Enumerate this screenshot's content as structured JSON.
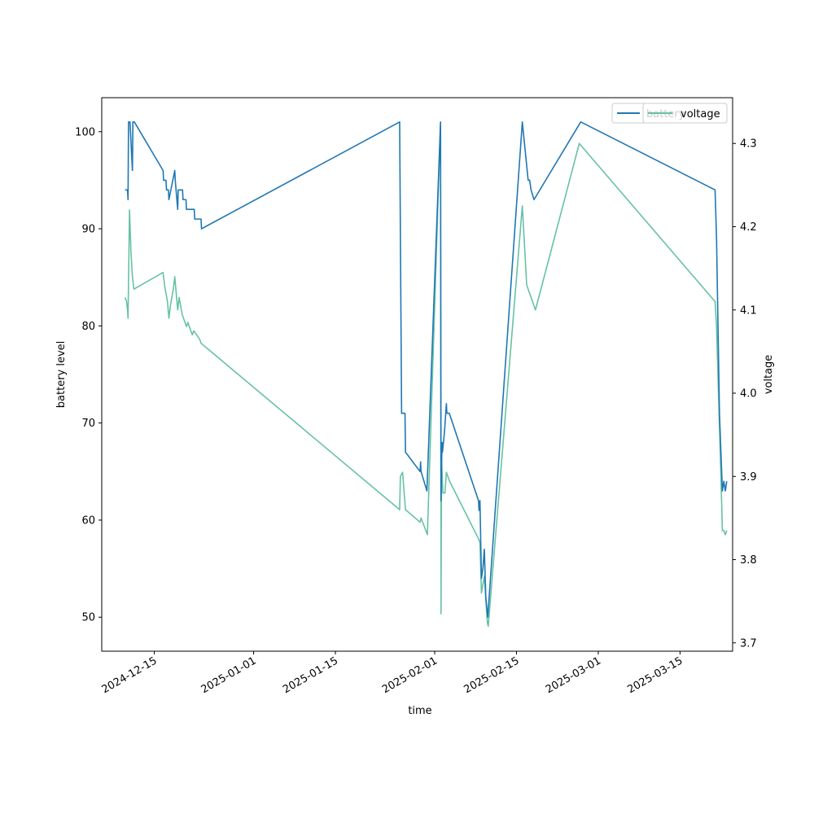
{
  "chart_data": {
    "type": "line",
    "xlabel": "time",
    "ylabel_left": "battery level",
    "ylabel_right": "voltage",
    "x_range": [
      "2024-12-06",
      "2025-03-24"
    ],
    "x_ticks": [
      "2024-12-15",
      "2025-01-01",
      "2025-01-15",
      "2025-02-01",
      "2025-02-15",
      "2025-03-01",
      "2025-03-15"
    ],
    "ylim_left": [
      46.5,
      103.5
    ],
    "yticks_left": [
      50,
      60,
      70,
      80,
      90,
      100
    ],
    "ylim_right": [
      3.69,
      4.355
    ],
    "yticks_right": [
      "3.7",
      "3.8",
      "3.9",
      "4.0",
      "4.1",
      "4.2",
      "4.3"
    ],
    "grid": false,
    "legend_placement": "top-right",
    "legend_entries": [
      "battery",
      "voltage"
    ],
    "colors": {
      "battery": "#1f77b4",
      "voltage": "#66c2a5"
    },
    "series": [
      {
        "name": "battery",
        "axis": "left",
        "points": [
          [
            "2024-12-10 00:00",
            94
          ],
          [
            "2024-12-10 10:00",
            94
          ],
          [
            "2024-12-10 12:00",
            93
          ],
          [
            "2024-12-10 14:00",
            101
          ],
          [
            "2024-12-10 20:00",
            101
          ],
          [
            "2024-12-11 02:00",
            98
          ],
          [
            "2024-12-11 06:00",
            96
          ],
          [
            "2024-12-11 08:00",
            101
          ],
          [
            "2024-12-11 14:00",
            101
          ],
          [
            "2024-12-16 12:00",
            96
          ],
          [
            "2024-12-16 14:00",
            95
          ],
          [
            "2024-12-17 00:00",
            95
          ],
          [
            "2024-12-17 02:00",
            94
          ],
          [
            "2024-12-17 10:00",
            94
          ],
          [
            "2024-12-17 12:00",
            93
          ],
          [
            "2024-12-18 12:00",
            96
          ],
          [
            "2024-12-18 14:00",
            95
          ],
          [
            "2024-12-19 00:00",
            92
          ],
          [
            "2024-12-19 02:00",
            94
          ],
          [
            "2024-12-19 20:00",
            94
          ],
          [
            "2024-12-19 22:00",
            93
          ],
          [
            "2024-12-20 10:00",
            93
          ],
          [
            "2024-12-20 12:00",
            92
          ],
          [
            "2024-12-21 20:00",
            92
          ],
          [
            "2024-12-21 22:00",
            91
          ],
          [
            "2024-12-23 00:00",
            91
          ],
          [
            "2024-12-23 02:00",
            90
          ],
          [
            "2025-01-26 00:00",
            101
          ],
          [
            "2025-01-26 08:00",
            71
          ],
          [
            "2025-01-26 22:00",
            71
          ],
          [
            "2025-01-27 00:00",
            67
          ],
          [
            "2025-01-29 12:00",
            65
          ],
          [
            "2025-01-29 14:00",
            66
          ],
          [
            "2025-01-29 16:00",
            65
          ],
          [
            "2025-01-30 16:00",
            63
          ],
          [
            "2025-02-02 00:00",
            101
          ],
          [
            "2025-02-02 02:00",
            62
          ],
          [
            "2025-02-02 06:00",
            68
          ],
          [
            "2025-02-02 08:00",
            67
          ],
          [
            "2025-02-02 16:00",
            69
          ],
          [
            "2025-02-03 00:00",
            72
          ],
          [
            "2025-02-03 02:00",
            71
          ],
          [
            "2025-02-03 12:00",
            71
          ],
          [
            "2025-02-08 12:00",
            62
          ],
          [
            "2025-02-08 14:00",
            61
          ],
          [
            "2025-02-08 18:00",
            62
          ],
          [
            "2025-02-09 00:00",
            54
          ],
          [
            "2025-02-09 06:00",
            55
          ],
          [
            "2025-02-09 12:00",
            57
          ],
          [
            "2025-02-09 18:00",
            52
          ],
          [
            "2025-02-10 02:00",
            50
          ],
          [
            "2025-02-16 00:00",
            101
          ],
          [
            "2025-02-16 12:00",
            98
          ],
          [
            "2025-02-17 00:00",
            95
          ],
          [
            "2025-02-17 06:00",
            95
          ],
          [
            "2025-02-17 12:00",
            94
          ],
          [
            "2025-02-18 00:00",
            93
          ],
          [
            "2025-02-26 00:00",
            101
          ],
          [
            "2025-03-21 00:00",
            94
          ],
          [
            "2025-03-21 06:00",
            89
          ],
          [
            "2025-03-21 18:00",
            71
          ],
          [
            "2025-03-22 06:00",
            63
          ],
          [
            "2025-03-22 12:00",
            64
          ],
          [
            "2025-03-22 18:00",
            63
          ],
          [
            "2025-03-23 00:00",
            64
          ]
        ]
      },
      {
        "name": "voltage",
        "axis": "right",
        "points": [
          [
            "2024-12-10 00:00",
            4.115
          ],
          [
            "2024-12-10 06:00",
            4.11
          ],
          [
            "2024-12-10 10:00",
            4.1
          ],
          [
            "2024-12-10 12:00",
            4.09
          ],
          [
            "2024-12-10 18:00",
            4.22
          ],
          [
            "2024-12-11 00:00",
            4.17
          ],
          [
            "2024-12-11 06:00",
            4.14
          ],
          [
            "2024-12-11 12:00",
            4.125
          ],
          [
            "2024-12-16 12:00",
            4.145
          ],
          [
            "2024-12-16 18:00",
            4.13
          ],
          [
            "2024-12-17 06:00",
            4.11
          ],
          [
            "2024-12-17 12:00",
            4.09
          ],
          [
            "2024-12-17 18:00",
            4.105
          ],
          [
            "2024-12-18 06:00",
            4.125
          ],
          [
            "2024-12-18 12:00",
            4.14
          ],
          [
            "2024-12-19 00:00",
            4.1
          ],
          [
            "2024-12-19 06:00",
            4.115
          ],
          [
            "2024-12-19 12:00",
            4.105
          ],
          [
            "2024-12-19 18:00",
            4.095
          ],
          [
            "2024-12-20 00:00",
            4.09
          ],
          [
            "2024-12-20 06:00",
            4.085
          ],
          [
            "2024-12-20 12:00",
            4.08
          ],
          [
            "2024-12-20 18:00",
            4.085
          ],
          [
            "2024-12-21 06:00",
            4.075
          ],
          [
            "2024-12-21 12:00",
            4.07
          ],
          [
            "2024-12-21 18:00",
            4.075
          ],
          [
            "2024-12-22 06:00",
            4.07
          ],
          [
            "2024-12-22 18:00",
            4.065
          ],
          [
            "2024-12-23 00:00",
            4.06
          ],
          [
            "2025-01-26 00:00",
            3.86
          ],
          [
            "2025-01-26 03:00",
            3.9
          ],
          [
            "2025-01-26 12:00",
            3.905
          ],
          [
            "2025-01-27 00:00",
            3.86
          ],
          [
            "2025-01-29 12:00",
            3.845
          ],
          [
            "2025-01-29 16:00",
            3.85
          ],
          [
            "2025-01-30 18:00",
            3.83
          ],
          [
            "2025-02-02 00:00",
            4.325
          ],
          [
            "2025-02-02 02:00",
            3.735
          ],
          [
            "2025-02-02 04:00",
            3.92
          ],
          [
            "2025-02-02 10:00",
            3.88
          ],
          [
            "2025-02-02 18:00",
            3.88
          ],
          [
            "2025-02-03 00:00",
            3.905
          ],
          [
            "2025-02-03 12:00",
            3.895
          ],
          [
            "2025-02-08 12:00",
            3.825
          ],
          [
            "2025-02-08 18:00",
            3.82
          ],
          [
            "2025-02-09 00:00",
            3.76
          ],
          [
            "2025-02-09 12:00",
            3.78
          ],
          [
            "2025-02-10 00:00",
            3.725
          ],
          [
            "2025-02-10 04:00",
            3.72
          ],
          [
            "2025-02-16 00:00",
            4.225
          ],
          [
            "2025-02-16 18:00",
            4.13
          ],
          [
            "2025-02-17 06:00",
            4.12
          ],
          [
            "2025-02-17 18:00",
            4.11
          ],
          [
            "2025-02-18 06:00",
            4.1
          ],
          [
            "2025-02-25 18:00",
            4.3
          ],
          [
            "2025-03-21 00:00",
            4.11
          ],
          [
            "2025-03-21 06:00",
            4.08
          ],
          [
            "2025-03-22 00:00",
            3.9
          ],
          [
            "2025-03-22 06:00",
            3.835
          ],
          [
            "2025-03-22 12:00",
            3.835
          ],
          [
            "2025-03-22 18:00",
            3.83
          ],
          [
            "2025-03-23 00:00",
            3.835
          ]
        ]
      }
    ]
  }
}
